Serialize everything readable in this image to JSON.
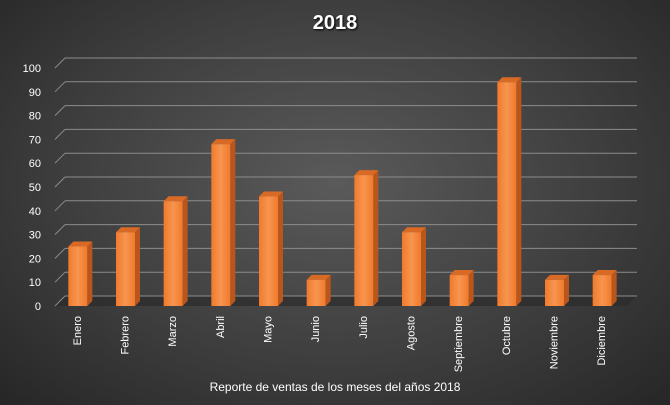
{
  "chart_data": {
    "type": "bar",
    "title": "2018",
    "xlabel": "Reporte de ventas de los meses del años 2018",
    "ylabel": "",
    "ylim": [
      0,
      100
    ],
    "yticks": [
      0,
      10,
      20,
      30,
      40,
      50,
      60,
      70,
      80,
      90,
      100
    ],
    "grid": true,
    "legend": "none",
    "categories": [
      "Enero",
      "Febrero",
      "Marzo",
      "Abril",
      "Mayo",
      "Junio",
      "Julio",
      "Agosto",
      "Septiembre",
      "Octubre",
      "Noviembre",
      "Diciembre"
    ],
    "values": [
      25,
      31,
      44,
      68,
      46,
      11,
      55,
      31,
      13,
      94,
      11,
      13
    ],
    "colors": {
      "bar_front": "#f07a2c",
      "bar_front_light": "#f7954f",
      "bar_side": "#b8561c",
      "bar_top": "#d86a26",
      "grid": "#8c8c8c",
      "floor": "#2b2b2b",
      "text": "#ffffff"
    }
  }
}
